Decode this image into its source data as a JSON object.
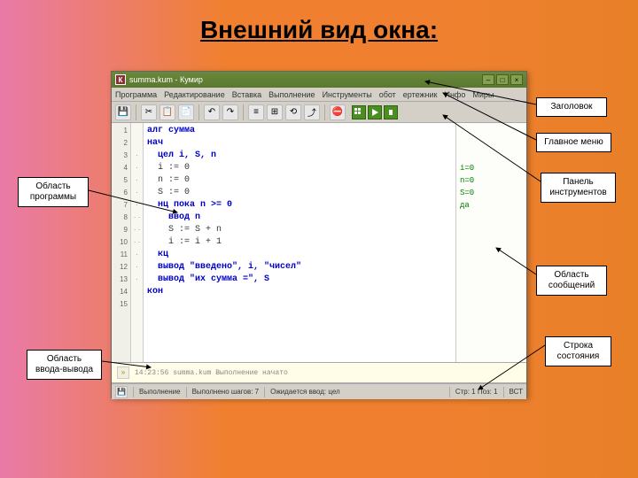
{
  "slide": {
    "title": "Внешний вид окна:"
  },
  "window": {
    "title": "summa.kum - Кумир",
    "app_icon_letter": "К",
    "min": "–",
    "max": "□",
    "close": "×"
  },
  "menu": {
    "items": [
      "Программа",
      "Редактирование",
      "Вставка",
      "Выполнение",
      "Инструменты",
      "обот",
      "ертежник",
      "Инфо",
      "Миры"
    ]
  },
  "toolbar": {
    "icons": [
      "💾",
      "✂",
      "📋",
      "📄",
      "↶",
      "↷"
    ],
    "icons2": [
      "≡",
      "⊞",
      "⟲",
      "⤴"
    ],
    "stop": "⛔",
    "green": [
      "▮▮▮",
      "▶",
      "▮"
    ]
  },
  "code": {
    "line_numbers": [
      "1",
      "2",
      "3",
      "4",
      "5",
      "6",
      "7",
      "8",
      "9",
      "10",
      "11",
      "12",
      "13",
      "14",
      "15"
    ],
    "dots": [
      "",
      "",
      "·",
      "·",
      "·",
      "·",
      "·",
      "· ·",
      "· ·",
      "· ·",
      "·",
      "·",
      "·",
      "",
      ""
    ],
    "lines": [
      {
        "t": "алг сумма",
        "cls": "kw-blue"
      },
      {
        "t": "нач",
        "cls": "kw-blue"
      },
      {
        "t": "цел i, S, n",
        "cls": "kw-blue",
        "indent": 1
      },
      {
        "t": "i := 0",
        "cls": "",
        "indent": 1
      },
      {
        "t": "n := 0",
        "cls": "",
        "indent": 1
      },
      {
        "t": "S := 0",
        "cls": "",
        "indent": 1
      },
      {
        "t": "нц пока n >= 0",
        "cls": "kw-blue",
        "indent": 1,
        "tail": " 0",
        "tailc": "lit-green"
      },
      {
        "t": "ввод n",
        "cls": "kw-blue",
        "indent": 2
      },
      {
        "t": "S := S + n",
        "cls": "",
        "indent": 2
      },
      {
        "t": "i := i + 1",
        "cls": "",
        "indent": 2
      },
      {
        "t": "кц",
        "cls": "kw-blue",
        "indent": 1
      },
      {
        "t": "вывод \"введено\", i, \"чисел\"",
        "cls": "kw-blue",
        "indent": 1
      },
      {
        "t": "вывод \"их сумма =\", S",
        "cls": "kw-blue",
        "indent": 1
      },
      {
        "t": "кон",
        "cls": "kw-blue"
      },
      {
        "t": "",
        "cls": ""
      }
    ]
  },
  "messages": {
    "lines": [
      "",
      "",
      "",
      "i=0",
      "n=0",
      "S=0",
      "да",
      "",
      "",
      "",
      "",
      "",
      "",
      "",
      ""
    ]
  },
  "io": {
    "arrow": "»",
    "text": "14:23:56  summa.kum  Выполнение начато"
  },
  "status": {
    "save_icon": "💾",
    "segments": [
      "Выполнение",
      "Выполнено шагов: 7",
      "Ожидается ввод: цел",
      "Стр: 1  Поз: 1",
      "ВСТ"
    ]
  },
  "callouts": {
    "title_label": "Заголовок",
    "menu_label": "Главное меню",
    "toolbar_label": "Панель инструментов",
    "program_label": "Область программы",
    "messages_label": "Область сообщений",
    "status_label": "Строка состояния",
    "io_label": "Область ввода-вывода"
  }
}
